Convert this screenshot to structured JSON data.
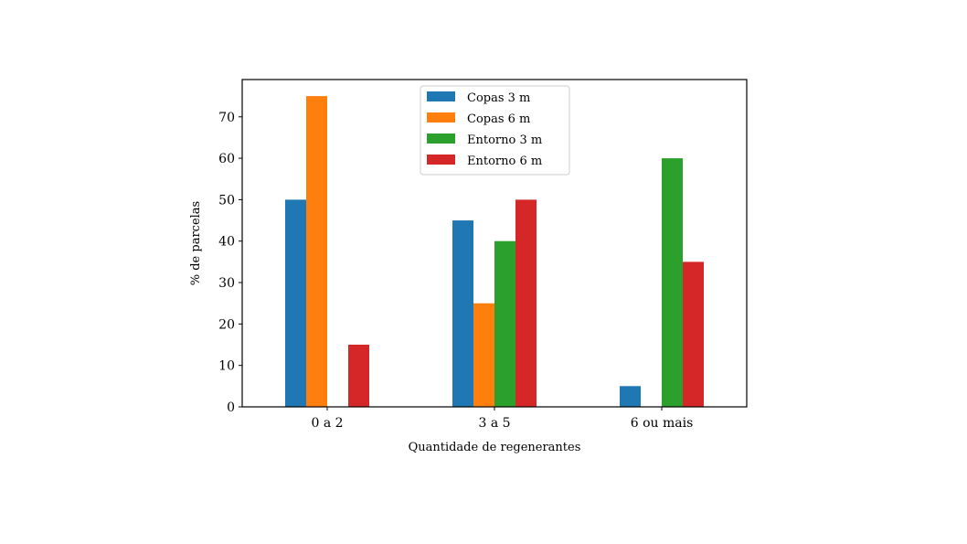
{
  "chart_data": {
    "type": "bar",
    "title": "",
    "xlabel": "Quantidade de regenerantes",
    "ylabel": "% de parcelas",
    "categories": [
      "0 a 2",
      "3 a 5",
      "6 ou mais"
    ],
    "ylim": [
      0,
      79
    ],
    "yticks": [
      0,
      10,
      20,
      30,
      40,
      50,
      60,
      70
    ],
    "grid": false,
    "legend_position": "top-center",
    "series": [
      {
        "name": "Copas 3 m",
        "color": "#1f77b4",
        "values": [
          50,
          45,
          5
        ]
      },
      {
        "name": "Copas 6 m",
        "color": "#ff7f0e",
        "values": [
          75,
          25,
          0
        ]
      },
      {
        "name": "Entorno 3 m",
        "color": "#2ca02c",
        "values": [
          0,
          40,
          60
        ]
      },
      {
        "name": "Entorno 6 m",
        "color": "#d62728",
        "values": [
          15,
          50,
          35
        ]
      }
    ]
  }
}
